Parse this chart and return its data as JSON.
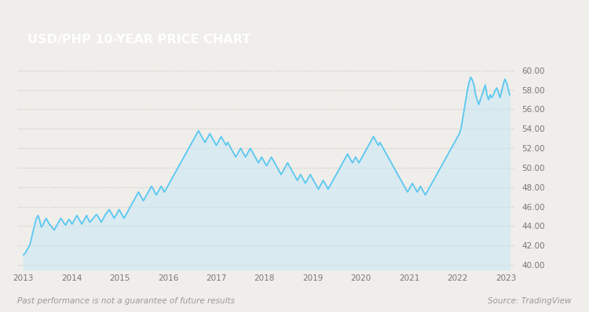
{
  "title": "USD/PHP 10-YEAR PRICE CHART",
  "title_bg_color": "#8B6344",
  "title_text_color": "#FFFFFF",
  "bg_color": "#F0EEEA",
  "plot_bg_color": "#F0EEEA",
  "line_color": "#5BC8F0",
  "fill_color": "#C8E8F8",
  "ylim": [
    39.5,
    60.5
  ],
  "yticks": [
    40.0,
    42.0,
    44.0,
    46.0,
    48.0,
    50.0,
    52.0,
    54.0,
    56.0,
    58.0,
    60.0
  ],
  "xlim_start": 2012.88,
  "xlim_end": 2023.2,
  "xtick_labels": [
    "2013",
    "2014",
    "2015",
    "2016",
    "2017",
    "2018",
    "2019",
    "2020",
    "2021",
    "2022",
    "2023"
  ],
  "xtick_positions": [
    2013.0,
    2014.0,
    2015.0,
    2016.0,
    2017.0,
    2018.0,
    2019.0,
    2020.0,
    2021.0,
    2022.0,
    2023.0
  ],
  "footer_left": "Past performance is not a guarantee of future results",
  "footer_right": "Source: TradingView",
  "grid_color": "#C8C4BC",
  "tick_label_color": "#777777",
  "line_width": 1.3,
  "prices": [
    41.05,
    41.2,
    41.5,
    41.8,
    42.1,
    42.8,
    43.5,
    44.2,
    44.8,
    45.1,
    44.6,
    43.9,
    44.1,
    44.5,
    44.8,
    44.5,
    44.2,
    44.0,
    43.8,
    43.6,
    43.9,
    44.2,
    44.5,
    44.8,
    44.6,
    44.3,
    44.1,
    44.4,
    44.7,
    44.5,
    44.2,
    44.5,
    44.8,
    45.1,
    44.8,
    44.5,
    44.2,
    44.5,
    44.8,
    45.1,
    44.7,
    44.4,
    44.6,
    44.8,
    45.0,
    45.2,
    45.0,
    44.7,
    44.4,
    44.7,
    45.0,
    45.3,
    45.5,
    45.7,
    45.4,
    45.1,
    44.8,
    45.1,
    45.4,
    45.7,
    45.4,
    45.1,
    44.8,
    45.1,
    45.4,
    45.7,
    46.0,
    46.3,
    46.6,
    46.9,
    47.2,
    47.5,
    47.2,
    46.9,
    46.6,
    46.9,
    47.2,
    47.5,
    47.8,
    48.1,
    47.8,
    47.5,
    47.2,
    47.5,
    47.8,
    48.1,
    47.8,
    47.5,
    47.8,
    48.1,
    48.4,
    48.7,
    49.0,
    49.3,
    49.6,
    49.9,
    50.2,
    50.5,
    50.8,
    51.1,
    51.4,
    51.7,
    52.0,
    52.3,
    52.6,
    52.9,
    53.2,
    53.5,
    53.8,
    53.5,
    53.2,
    52.9,
    52.6,
    52.9,
    53.2,
    53.5,
    53.2,
    52.9,
    52.6,
    52.3,
    52.6,
    52.9,
    53.2,
    52.9,
    52.6,
    52.3,
    52.6,
    52.3,
    52.0,
    51.7,
    51.4,
    51.1,
    51.4,
    51.7,
    52.0,
    51.7,
    51.4,
    51.1,
    51.4,
    51.7,
    52.0,
    51.7,
    51.4,
    51.1,
    50.8,
    50.5,
    50.8,
    51.1,
    50.8,
    50.5,
    50.2,
    50.5,
    50.8,
    51.1,
    50.8,
    50.5,
    50.2,
    49.9,
    49.6,
    49.3,
    49.6,
    49.9,
    50.2,
    50.5,
    50.2,
    49.9,
    49.6,
    49.3,
    49.0,
    48.7,
    49.0,
    49.3,
    49.0,
    48.7,
    48.4,
    48.7,
    49.0,
    49.3,
    49.0,
    48.7,
    48.4,
    48.1,
    47.8,
    48.1,
    48.4,
    48.7,
    48.4,
    48.1,
    47.8,
    48.1,
    48.4,
    48.7,
    49.0,
    49.3,
    49.6,
    49.9,
    50.2,
    50.5,
    50.8,
    51.1,
    51.4,
    51.1,
    50.8,
    50.5,
    50.8,
    51.1,
    50.8,
    50.5,
    50.8,
    51.1,
    51.4,
    51.7,
    52.0,
    52.3,
    52.6,
    52.9,
    53.2,
    52.9,
    52.6,
    52.3,
    52.6,
    52.3,
    52.0,
    51.7,
    51.4,
    51.1,
    50.8,
    50.5,
    50.2,
    49.9,
    49.6,
    49.3,
    49.0,
    48.7,
    48.4,
    48.1,
    47.8,
    47.5,
    47.8,
    48.1,
    48.4,
    48.1,
    47.8,
    47.5,
    47.8,
    48.1,
    47.8,
    47.5,
    47.2,
    47.5,
    47.8,
    48.1,
    48.4,
    48.7,
    49.0,
    49.3,
    49.6,
    49.9,
    50.2,
    50.5,
    50.8,
    51.1,
    51.4,
    51.7,
    52.0,
    52.3,
    52.6,
    52.9,
    53.2,
    53.5,
    54.0,
    55.0,
    56.0,
    57.0,
    58.0,
    58.8,
    59.3,
    59.0,
    58.5,
    57.5,
    57.0,
    56.5,
    57.0,
    57.5,
    58.0,
    58.5,
    57.5,
    57.0,
    57.5,
    57.2,
    57.5,
    57.9,
    58.2,
    57.8,
    57.2,
    57.8,
    58.5,
    59.1,
    58.8,
    58.2,
    57.5
  ],
  "start_year": 2013.0,
  "end_year": 2023.08
}
